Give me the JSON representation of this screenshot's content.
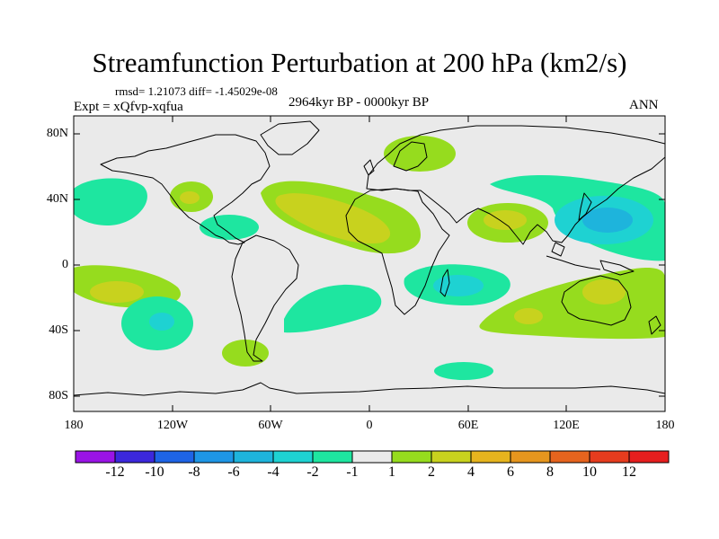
{
  "title": "Streamfunction Perturbation at 200 hPa (km2/s)",
  "stats": "rmsd= 1.21073 diff= -1.45029e-08",
  "experiment": "Expt = xQfvp-xqfua",
  "period": "2964kyr BP - 0000kyr BP",
  "season": "ANN",
  "y_axis_labels": [
    "80N",
    "40N",
    "0",
    "40S",
    "80S"
  ],
  "x_axis_labels": [
    "180",
    "120W",
    "60W",
    "0",
    "60E",
    "120E",
    "180"
  ],
  "colorbar": {
    "labels": [
      "-12",
      "-10",
      "-8",
      "-6",
      "-4",
      "-2",
      "-1",
      "1",
      "2",
      "4",
      "6",
      "8",
      "10",
      "12"
    ],
    "colors": [
      "#9a14e6",
      "#3c28dc",
      "#1e64e6",
      "#1e96e6",
      "#1eb4dc",
      "#1ed2d2",
      "#1ee6a0",
      "#eaeaea",
      "#96dc1e",
      "#c8d21e",
      "#e6b41e",
      "#e6961e",
      "#e6641e",
      "#e63c1e",
      "#e61e1e"
    ]
  },
  "palette": {
    "ocean_background": "#eaeaea",
    "coastline": "#000000"
  }
}
